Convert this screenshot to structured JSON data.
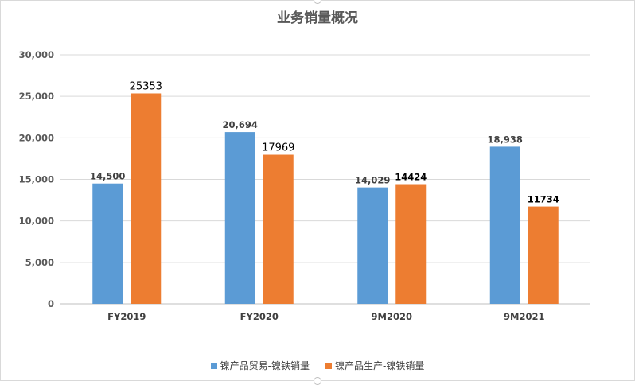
{
  "chart_data": {
    "type": "bar",
    "title": "业务销量概况",
    "categories": [
      "FY2019",
      "FY2020",
      "9M2020",
      "9M2021"
    ],
    "series": [
      {
        "name": "镍产品贸易-镍铁销量",
        "color": "#5b9bd5",
        "values": [
          14500,
          20694,
          14029,
          18938
        ],
        "labels": [
          "14,500",
          "20,694",
          "14,029",
          "18,938"
        ]
      },
      {
        "name": "镍产品生产-镍铁销量",
        "color": "#ed7d31",
        "values": [
          25353,
          17969,
          14424,
          11734
        ],
        "labels": [
          "25353",
          "17969",
          "14424",
          "11734"
        ]
      }
    ],
    "ylim": [
      0,
      30000
    ],
    "yticks": [
      "0",
      "5,000",
      "10,000",
      "15,000",
      "20,000",
      "25,000",
      "30,000"
    ],
    "grid": true,
    "legend": "bottom"
  }
}
